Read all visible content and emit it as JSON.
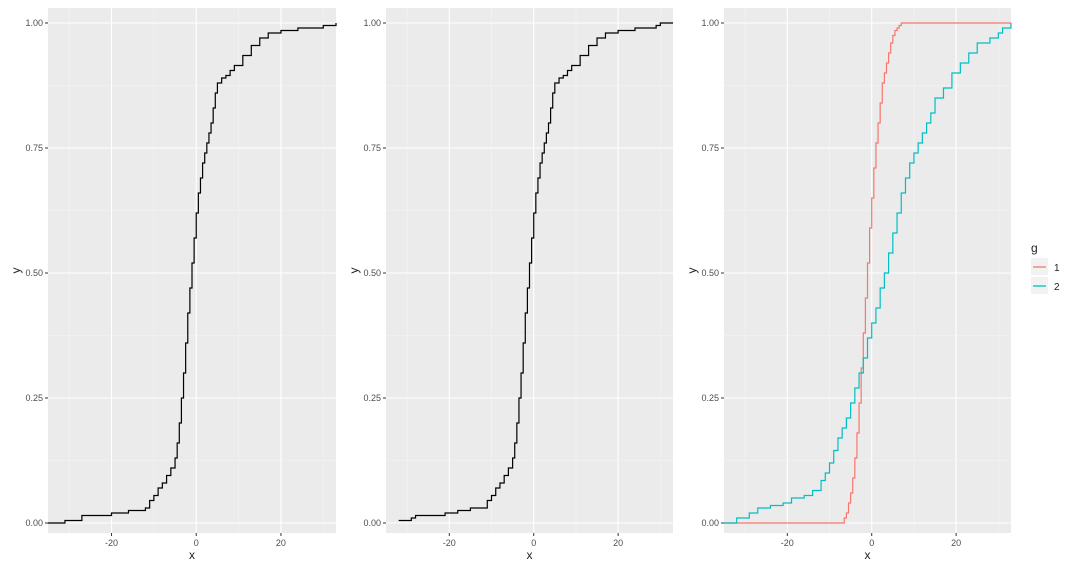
{
  "chart_data": [
    {
      "type": "line",
      "step": true,
      "title": "",
      "xlabel": "x",
      "ylabel": "y",
      "xlim": [
        -35,
        33
      ],
      "ylim": [
        -0.02,
        1.03
      ],
      "xticks": [
        -20,
        0,
        20
      ],
      "xtick_labels": [
        "-20",
        "0",
        "20"
      ],
      "yticks": [
        0,
        0.25,
        0.5,
        0.75,
        1
      ],
      "ytick_labels": [
        "0.00",
        "0.25",
        "0.50",
        "0.75",
        "1.00"
      ],
      "grid": true,
      "series": [
        {
          "color": "#000000",
          "x": [
            -35,
            -31,
            -27,
            -20,
            -16,
            -12,
            -11,
            -10,
            -9,
            -8,
            -7,
            -6,
            -5,
            -4.5,
            -4,
            -3.5,
            -3,
            -2.5,
            -2,
            -1.5,
            -1,
            -0.5,
            0,
            0.5,
            1,
            1.5,
            2,
            2.5,
            3,
            3.5,
            4,
            4.5,
            5,
            6,
            7,
            8,
            9,
            11,
            13,
            15,
            17,
            20,
            24,
            30,
            33
          ],
          "y": [
            0.0,
            0.005,
            0.015,
            0.02,
            0.025,
            0.03,
            0.045,
            0.055,
            0.07,
            0.08,
            0.095,
            0.11,
            0.13,
            0.16,
            0.2,
            0.25,
            0.3,
            0.36,
            0.42,
            0.47,
            0.52,
            0.57,
            0.62,
            0.66,
            0.69,
            0.72,
            0.74,
            0.76,
            0.78,
            0.8,
            0.83,
            0.86,
            0.88,
            0.89,
            0.895,
            0.905,
            0.915,
            0.935,
            0.955,
            0.97,
            0.98,
            0.985,
            0.99,
            0.995,
            1.0
          ]
        }
      ]
    },
    {
      "type": "line",
      "step": true,
      "title": "",
      "xlabel": "x",
      "ylabel": "y",
      "xlim": [
        -35,
        33
      ],
      "ylim": [
        -0.02,
        1.03
      ],
      "xticks": [
        -20,
        0,
        20
      ],
      "xtick_labels": [
        "-20",
        "0",
        "20"
      ],
      "yticks": [
        0,
        0.25,
        0.5,
        0.75,
        1
      ],
      "ytick_labels": [
        "0.00",
        "0.25",
        "0.50",
        "0.75",
        "1.00"
      ],
      "grid": true,
      "series": [
        {
          "color": "#000000",
          "x": [
            -32,
            -29,
            -28,
            -21,
            -18,
            -15,
            -11,
            -10,
            -9,
            -8,
            -7,
            -6,
            -5,
            -4.5,
            -4,
            -3.5,
            -3,
            -2.5,
            -2,
            -1.5,
            -1,
            -0.5,
            0,
            0.5,
            1,
            1.5,
            2,
            2.5,
            3,
            3.5,
            4,
            4.5,
            5,
            6,
            7,
            8,
            9,
            11,
            13,
            15,
            17,
            20,
            24,
            29,
            30
          ],
          "y": [
            0.005,
            0.01,
            0.015,
            0.02,
            0.025,
            0.03,
            0.045,
            0.055,
            0.07,
            0.08,
            0.095,
            0.11,
            0.13,
            0.16,
            0.2,
            0.25,
            0.3,
            0.36,
            0.42,
            0.47,
            0.52,
            0.57,
            0.62,
            0.66,
            0.69,
            0.72,
            0.74,
            0.76,
            0.78,
            0.8,
            0.83,
            0.86,
            0.88,
            0.89,
            0.895,
            0.905,
            0.915,
            0.935,
            0.955,
            0.97,
            0.98,
            0.985,
            0.99,
            0.995,
            1.0
          ]
        }
      ]
    },
    {
      "type": "line",
      "step": true,
      "title": "",
      "xlabel": "x",
      "ylabel": "y",
      "xlim": [
        -35,
        33
      ],
      "ylim": [
        -0.02,
        1.03
      ],
      "xticks": [
        -20,
        0,
        20
      ],
      "xtick_labels": [
        "-20",
        "0",
        "20"
      ],
      "yticks": [
        0,
        0.25,
        0.5,
        0.75,
        1
      ],
      "ytick_labels": [
        "0.00",
        "0.25",
        "0.50",
        "0.75",
        "1.00"
      ],
      "grid": true,
      "legend": {
        "title": "g",
        "position": "right"
      },
      "series": [
        {
          "name": "1",
          "color": "#F8766D",
          "x": [
            -35,
            -6.5,
            -6,
            -5.5,
            -5,
            -4.5,
            -4,
            -3.5,
            -3,
            -2.5,
            -2,
            -1.5,
            -1,
            -0.5,
            0,
            0.5,
            1,
            1.5,
            2,
            2.5,
            3,
            3.5,
            4,
            4.5,
            5,
            5.5,
            6,
            6.5,
            7,
            7.5,
            8,
            33
          ],
          "y": [
            0.0,
            0.01,
            0.02,
            0.04,
            0.06,
            0.09,
            0.13,
            0.18,
            0.24,
            0.31,
            0.38,
            0.45,
            0.52,
            0.59,
            0.65,
            0.71,
            0.76,
            0.8,
            0.84,
            0.88,
            0.9,
            0.92,
            0.94,
            0.96,
            0.975,
            0.985,
            0.99,
            0.995,
            1.0,
            1.0,
            1.0,
            1.0
          ]
        },
        {
          "name": "2",
          "color": "#00BFC4",
          "x": [
            -35,
            -32,
            -29,
            -27,
            -24,
            -21,
            -19,
            -16,
            -14,
            -12,
            -11,
            -10,
            -9,
            -8,
            -7,
            -6,
            -5,
            -4,
            -3,
            -2,
            -1,
            0,
            1,
            2,
            3,
            4,
            5,
            6,
            7,
            8,
            9,
            10,
            11,
            12,
            13,
            14,
            15,
            17,
            19,
            21,
            23,
            25,
            28,
            30,
            31,
            33
          ],
          "y": [
            0.0,
            0.01,
            0.02,
            0.03,
            0.035,
            0.04,
            0.05,
            0.055,
            0.065,
            0.085,
            0.1,
            0.12,
            0.145,
            0.17,
            0.19,
            0.21,
            0.24,
            0.27,
            0.3,
            0.33,
            0.37,
            0.4,
            0.43,
            0.47,
            0.5,
            0.54,
            0.58,
            0.62,
            0.66,
            0.69,
            0.72,
            0.74,
            0.76,
            0.78,
            0.8,
            0.82,
            0.85,
            0.87,
            0.9,
            0.92,
            0.94,
            0.96,
            0.97,
            0.98,
            0.99,
            1.0
          ]
        }
      ]
    }
  ]
}
